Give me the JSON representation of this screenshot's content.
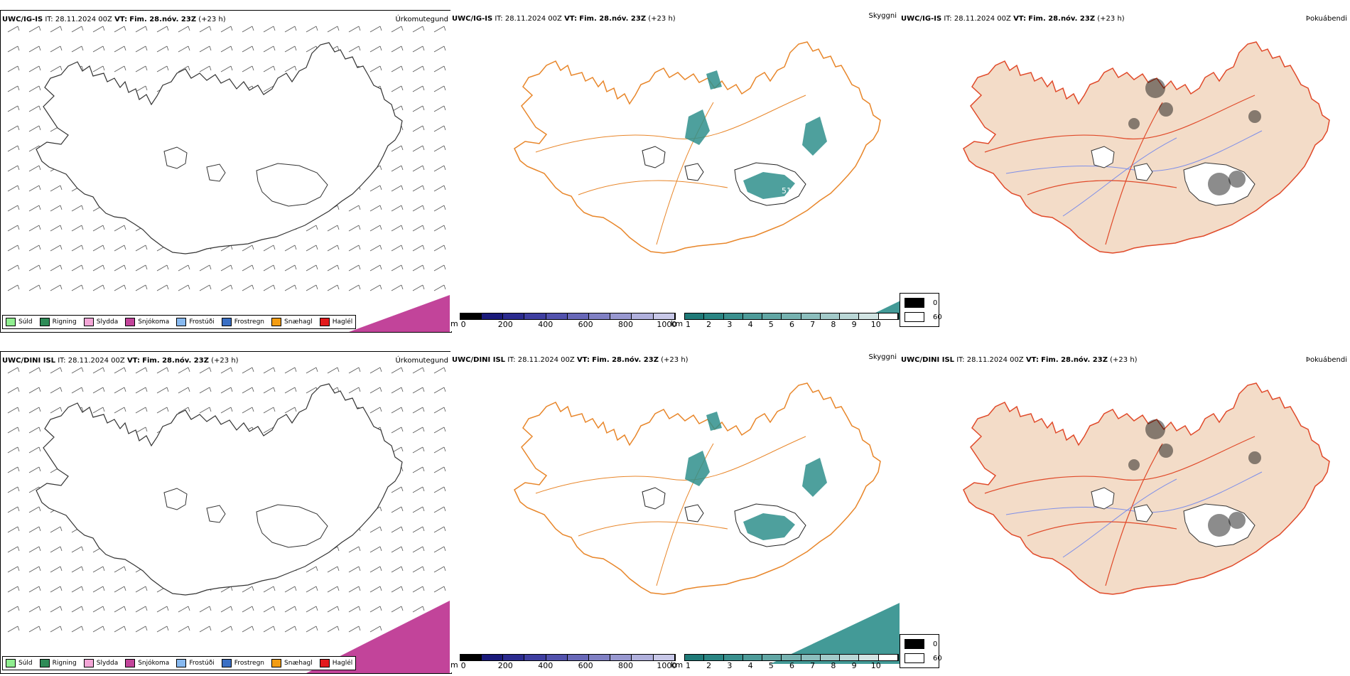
{
  "rows": [
    {
      "header": {
        "model": "UWC/IG-IS",
        "it_label": "IT:",
        "it_value": "28.11.2024 00Z",
        "vt_label": "VT:",
        "vt_value": "Fim. 28.nóv. 23Z",
        "lead": "(+23 h)"
      },
      "panels": {
        "precip": "Úrkomutegund",
        "visibility": "Skyggni",
        "fog": "Þokuábendi"
      },
      "visibility_label": "5100"
    },
    {
      "header": {
        "model": "UWC/DINI ISL",
        "it_label": "IT:",
        "it_value": "28.11.2024 00Z",
        "vt_label": "VT:",
        "vt_value": "Fim. 28.nóv. 23Z",
        "lead": "(+23 h)"
      },
      "panels": {
        "precip": "Úrkomutegund",
        "visibility": "Skyggni",
        "fog": "Þokuábendi"
      },
      "visibility_label": ""
    }
  ],
  "precip_legend": [
    {
      "label": "Súld",
      "color": "#90ee90"
    },
    {
      "label": "Rigning",
      "color": "#2e8b57"
    },
    {
      "label": "Slydda",
      "color": "#f4a6d7"
    },
    {
      "label": "Snjókoma",
      "color": "#c2449a"
    },
    {
      "label": "Frostúði",
      "color": "#87b9f0"
    },
    {
      "label": "Frostregn",
      "color": "#3a6fc4"
    },
    {
      "label": "Snæhagl",
      "color": "#f39c12"
    },
    {
      "label": "Haglél",
      "color": "#e31a1c"
    }
  ],
  "height_colorbar": {
    "unit": "m",
    "labels": [
      "0",
      "200",
      "400",
      "600",
      "800",
      "1000"
    ],
    "colors": [
      "#000000",
      "#1a1a7a",
      "#2b2b8f",
      "#3e3ea0",
      "#5252ad",
      "#6868b8",
      "#8080c4",
      "#9898d0",
      "#b0b0dc",
      "#c8c8e8"
    ]
  },
  "visibility_colorbar": {
    "unit": "km",
    "labels": [
      "1",
      "2",
      "3",
      "4",
      "5",
      "6",
      "7",
      "8",
      "9",
      "10"
    ],
    "colors": [
      "#1f7a78",
      "#2a8583",
      "#3a908e",
      "#4d9b99",
      "#61a6a4",
      "#76b2b0",
      "#8cbebd",
      "#a3cac9",
      "#bad7d6",
      "#d2e4e3",
      "#ffffff"
    ]
  },
  "fog_legend": [
    {
      "label": "0",
      "color": "#000000"
    },
    {
      "label": "60",
      "color": "#ffffff"
    }
  ],
  "colors": {
    "snow": "#c2449a",
    "visibility_fill": "#2f8f8c",
    "roads": "#e8862a",
    "fog_land": "#f3dcc8",
    "fog_roads": "#e04a2a",
    "rivers": "#7f8fe8"
  }
}
